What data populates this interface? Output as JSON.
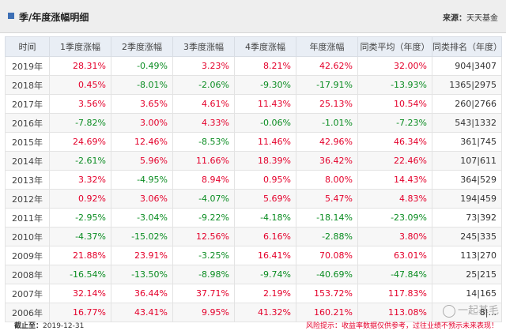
{
  "header": {
    "title": "季/年度涨幅明细",
    "source_label": "来源：",
    "source_value": "天天基金"
  },
  "table": {
    "columns": [
      "时间",
      "1季度涨幅",
      "2季度涨幅",
      "3季度涨幅",
      "4季度涨幅",
      "年度涨幅",
      "同类平均（年度）",
      "同类排名（年度）"
    ],
    "rows": [
      [
        "2019年",
        "28.31%",
        "-0.49%",
        "3.23%",
        "8.21%",
        "42.62%",
        "32.00%",
        "904|3407"
      ],
      [
        "2018年",
        "0.45%",
        "-8.01%",
        "-2.06%",
        "-9.30%",
        "-17.91%",
        "-13.93%",
        "1365|2975"
      ],
      [
        "2017年",
        "3.56%",
        "3.65%",
        "4.61%",
        "11.43%",
        "25.13%",
        "10.54%",
        "260|2766"
      ],
      [
        "2016年",
        "-7.82%",
        "3.00%",
        "4.33%",
        "-0.06%",
        "-1.01%",
        "-7.23%",
        "543|1332"
      ],
      [
        "2015年",
        "24.69%",
        "12.46%",
        "-8.53%",
        "11.46%",
        "42.96%",
        "46.34%",
        "361|745"
      ],
      [
        "2014年",
        "-2.61%",
        "5.96%",
        "11.66%",
        "18.39%",
        "36.42%",
        "22.46%",
        "107|611"
      ],
      [
        "2013年",
        "3.32%",
        "-4.95%",
        "8.94%",
        "0.95%",
        "8.00%",
        "14.43%",
        "364|529"
      ],
      [
        "2012年",
        "0.92%",
        "3.06%",
        "-4.07%",
        "5.69%",
        "5.47%",
        "4.83%",
        "194|459"
      ],
      [
        "2011年",
        "-2.95%",
        "-3.04%",
        "-9.22%",
        "-4.18%",
        "-18.14%",
        "-23.09%",
        "73|392"
      ],
      [
        "2010年",
        "-4.37%",
        "-15.02%",
        "12.56%",
        "6.16%",
        "-2.88%",
        "3.80%",
        "245|335"
      ],
      [
        "2009年",
        "21.88%",
        "23.91%",
        "-3.25%",
        "16.41%",
        "70.08%",
        "63.01%",
        "113|270"
      ],
      [
        "2008年",
        "-16.54%",
        "-13.50%",
        "-8.98%",
        "-9.74%",
        "-40.69%",
        "-47.84%",
        "25|215"
      ],
      [
        "2007年",
        "32.14%",
        "36.44%",
        "37.71%",
        "2.19%",
        "153.72%",
        "117.83%",
        "14|165"
      ],
      [
        "2006年",
        "16.77%",
        "43.41%",
        "9.95%",
        "41.32%",
        "160.21%",
        "113.08%",
        "8|..."
      ]
    ]
  },
  "footer": {
    "asof_label": "截止至：",
    "asof_value": "2019-12-31",
    "disclaimer": "风险提示：收益率数据仅供参考，过往业绩不预示未来表现！"
  },
  "watermark": {
    "text": "一起基毛"
  },
  "colors": {
    "up": "#e4002b",
    "down": "#0a8c21",
    "accent": "#3d6fb5"
  }
}
